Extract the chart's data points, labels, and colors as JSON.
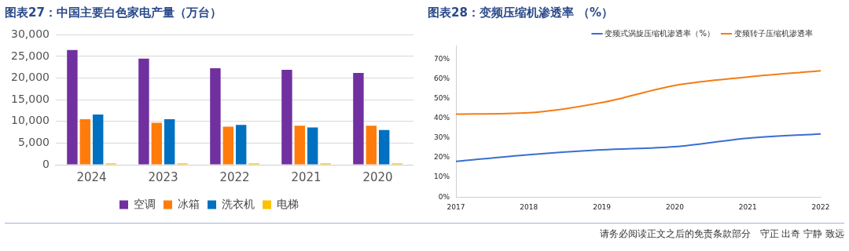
{
  "chart_data": [
    {
      "type": "bar",
      "title": "图表27：中国主要白色家电产量（万台）",
      "categories": [
        "2024",
        "2023",
        "2022",
        "2021",
        "2020"
      ],
      "series": [
        {
          "name": "空调",
          "color": "#7030a0",
          "values": [
            26500,
            24500,
            22300,
            21900,
            21200
          ]
        },
        {
          "name": "冰箱",
          "color": "#ff7c0a",
          "values": [
            10500,
            9700,
            8800,
            9000,
            9000
          ]
        },
        {
          "name": "洗衣机",
          "color": "#0070c0",
          "values": [
            11600,
            10500,
            9200,
            8600,
            8000
          ]
        },
        {
          "name": "电梯",
          "color": "#ffc000",
          "values": [
            300,
            300,
            300,
            300,
            300
          ]
        }
      ],
      "ylim": [
        0,
        30000
      ],
      "yticks": [
        {
          "value": 0,
          "label": "0"
        },
        {
          "value": 5000,
          "label": "5,000"
        },
        {
          "value": 10000,
          "label": "10,000"
        },
        {
          "value": 15000,
          "label": "15,000"
        },
        {
          "value": 20000,
          "label": "20,000"
        },
        {
          "value": 25000,
          "label": "25,000"
        },
        {
          "value": 30000,
          "label": "30,000"
        }
      ],
      "grid": "y",
      "legend": "bottom"
    },
    {
      "type": "line",
      "title": "图表28：变频压缩机渗透率 （%）",
      "categories": [
        "2017",
        "2018",
        "2019",
        "2020",
        "2021",
        "2022"
      ],
      "series": [
        {
          "name": "变频式涡旋压缩机渗透率（%）",
          "color": "#3a6fd0",
          "values": [
            18.1,
            21.5,
            24.0,
            25.6,
            29.9,
            32.1
          ]
        },
        {
          "name": "变频转子压缩机渗透率",
          "color": "#f57c14",
          "values": [
            42.1,
            42.8,
            48.0,
            56.7,
            61.0,
            64.1
          ]
        }
      ],
      "ylim": [
        0,
        77
      ],
      "yticks": [
        {
          "value": 0,
          "label": "0%"
        },
        {
          "value": 10,
          "label": "10%"
        },
        {
          "value": 20,
          "label": "20%"
        },
        {
          "value": 30,
          "label": "30%"
        },
        {
          "value": 40,
          "label": "40%"
        },
        {
          "value": 50,
          "label": "50%"
        },
        {
          "value": 60,
          "label": "60%"
        },
        {
          "value": 70,
          "label": "70%"
        }
      ],
      "grid": false,
      "legend": "top right",
      "marker": "none",
      "annotations": [
        "请务必阅读正文之后的免责条款部分　守正 出奇 宁静 致远"
      ]
    }
  ]
}
